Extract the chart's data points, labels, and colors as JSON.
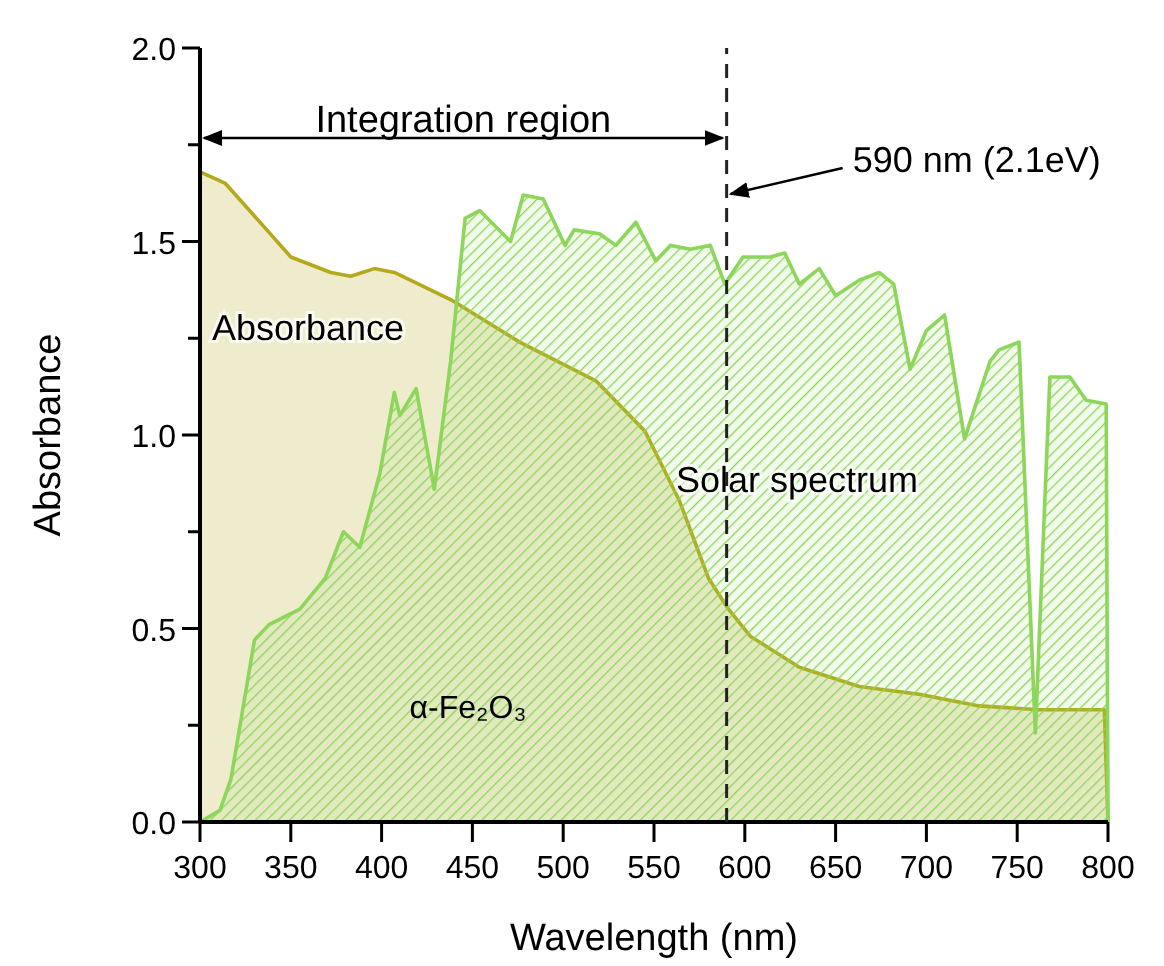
{
  "chart_data": {
    "type": "area",
    "xlabel": "Wavelength (nm)",
    "ylabel": "Absorbance",
    "xlim": [
      300,
      800
    ],
    "ylim": [
      0,
      2.0
    ],
    "xticks": [
      300,
      350,
      400,
      450,
      500,
      550,
      600,
      650,
      700,
      750,
      800
    ],
    "yticks": [
      {
        "value": 0,
        "label": "0.0"
      },
      {
        "value": 0.25,
        "label": null
      },
      {
        "value": 0.5,
        "label": "0.5"
      },
      {
        "value": 0.75,
        "label": null
      },
      {
        "value": 1,
        "label": "1.0"
      },
      {
        "value": 1.25,
        "label": null
      },
      {
        "value": 1.5,
        "label": "1.5"
      },
      {
        "value": 1.75,
        "label": null
      },
      {
        "value": 2,
        "label": "2.0"
      }
    ],
    "grid": false,
    "series": [
      {
        "name": "Absorbance",
        "color": "#b5a81a",
        "x": [
          300,
          314,
          333,
          350,
          372,
          383,
          396,
          407,
          438,
          476,
          518,
          545,
          564,
          580,
          591,
          603,
          630,
          663,
          696,
          729,
          762,
          798,
          800
        ],
        "values": [
          1.68,
          1.65,
          1.55,
          1.46,
          1.42,
          1.41,
          1.43,
          1.42,
          1.35,
          1.24,
          1.14,
          1.01,
          0.83,
          0.63,
          0.55,
          0.48,
          0.4,
          0.35,
          0.33,
          0.3,
          0.29,
          0.29,
          0
        ]
      },
      {
        "name": "Solar spectrum",
        "color": "#8cd65a",
        "x": [
          300,
          311,
          317,
          330,
          338,
          355,
          369,
          379,
          388,
          399,
          407,
          410,
          419,
          429,
          438,
          446,
          454,
          471,
          478,
          489,
          501,
          506,
          520,
          529,
          540,
          551,
          559,
          570,
          581,
          589,
          599,
          614,
          622,
          630,
          641,
          650,
          663,
          674,
          682,
          691,
          700,
          710,
          721,
          735,
          740,
          751,
          760,
          768,
          779,
          788,
          799,
          800
        ],
        "values": [
          0,
          0.03,
          0.11,
          0.47,
          0.51,
          0.55,
          0.63,
          0.75,
          0.71,
          0.9,
          1.11,
          1.05,
          1.12,
          0.86,
          1.19,
          1.56,
          1.58,
          1.5,
          1.62,
          1.61,
          1.49,
          1.53,
          1.52,
          1.49,
          1.55,
          1.45,
          1.49,
          1.48,
          1.49,
          1.39,
          1.46,
          1.46,
          1.47,
          1.39,
          1.43,
          1.36,
          1.4,
          1.42,
          1.39,
          1.17,
          1.27,
          1.31,
          0.99,
          1.19,
          1.22,
          1.24,
          0.23,
          1.15,
          1.15,
          1.09,
          1.08,
          0
        ]
      }
    ],
    "ref_lines": [
      {
        "axis": "x",
        "value": 590,
        "label": "590 nm (2.1eV)",
        "line_style": "dashed",
        "color": "#222222"
      }
    ],
    "annotations": [
      "Integration region",
      "α-Fe₂O₃"
    ]
  }
}
